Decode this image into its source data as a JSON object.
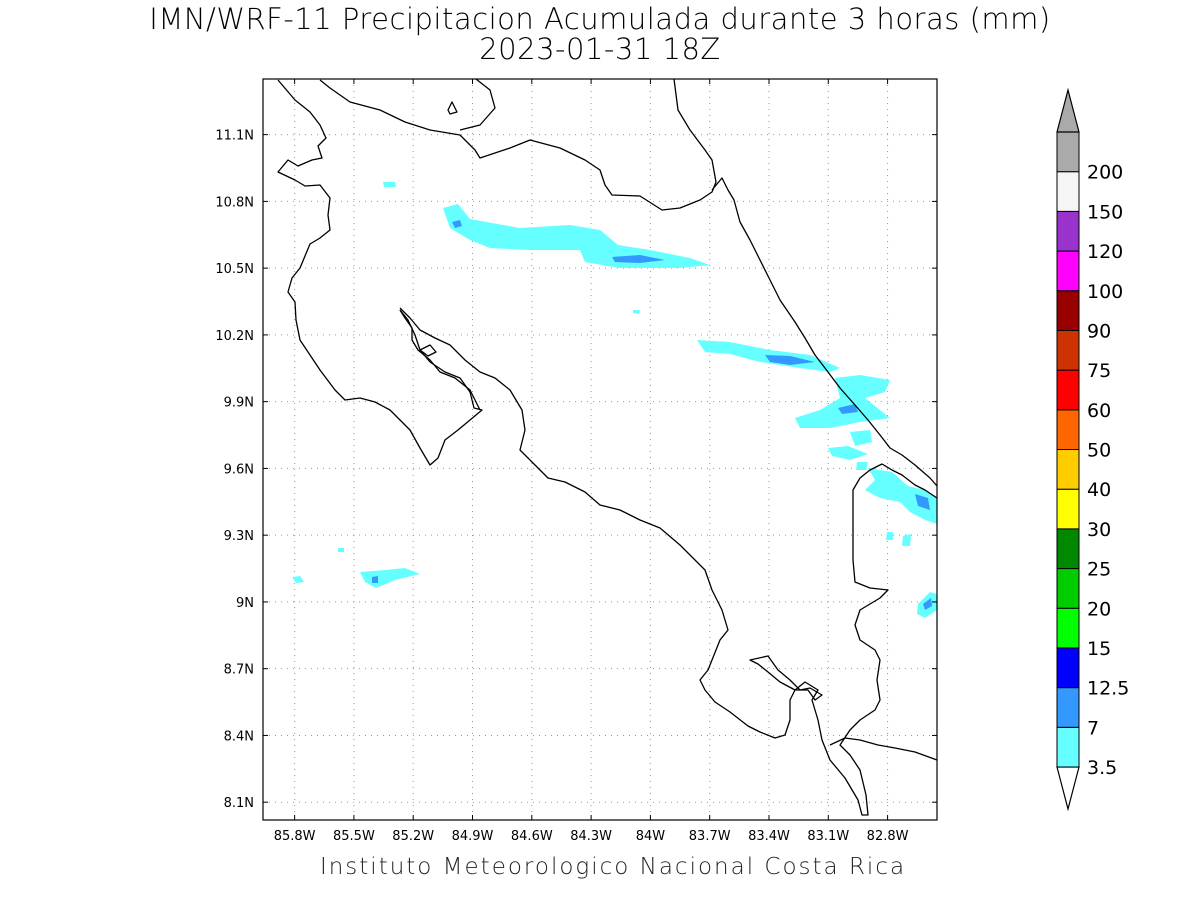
{
  "title": "IMN/WRF-11 Precipitacion Acumulada durante 3 horas (mm)",
  "subtitle": "2023-01-31 18Z",
  "footer": "Instituto Meteorologico Nacional Costa Rica",
  "map": {
    "lon_range": [
      -85.96,
      -82.55
    ],
    "lat_range": [
      8.02,
      11.35
    ],
    "x_ticks": [
      {
        "lon": -85.8,
        "label": "85.8W"
      },
      {
        "lon": -85.5,
        "label": "85.5W"
      },
      {
        "lon": -85.2,
        "label": "85.2W"
      },
      {
        "lon": -84.9,
        "label": "84.9W"
      },
      {
        "lon": -84.6,
        "label": "84.6W"
      },
      {
        "lon": -84.3,
        "label": "84.3W"
      },
      {
        "lon": -84.0,
        "label": "84W"
      },
      {
        "lon": -83.7,
        "label": "83.7W"
      },
      {
        "lon": -83.4,
        "label": "83.4W"
      },
      {
        "lon": -83.1,
        "label": "83.1W"
      },
      {
        "lon": -82.8,
        "label": "82.8W"
      }
    ],
    "y_ticks": [
      {
        "lat": 11.1,
        "label": "11.1N"
      },
      {
        "lat": 10.8,
        "label": "10.8N"
      },
      {
        "lat": 10.5,
        "label": "10.5N"
      },
      {
        "lat": 10.2,
        "label": "10.2N"
      },
      {
        "lat": 9.9,
        "label": "9.9N"
      },
      {
        "lat": 9.6,
        "label": "9.6N"
      },
      {
        "lat": 9.3,
        "label": "9.3N"
      },
      {
        "lat": 9.0,
        "label": "9N"
      },
      {
        "lat": 8.7,
        "label": "8.7N"
      },
      {
        "lat": 8.4,
        "label": "8.4N"
      },
      {
        "lat": 8.1,
        "label": "8.1N"
      }
    ],
    "grid": true,
    "precip_color_low": "#66ffff",
    "precip_color_mid": "#3399ff"
  },
  "colorbar": {
    "labels": [
      "3.5",
      "7",
      "12.5",
      "15",
      "20",
      "25",
      "30",
      "40",
      "50",
      "60",
      "75",
      "90",
      "100",
      "120",
      "150",
      "200"
    ],
    "colors": [
      "#66ffff",
      "#3399ff",
      "#0000ff",
      "#00ff00",
      "#00cc00",
      "#008800",
      "#ffff00",
      "#ffcc00",
      "#ff6600",
      "#ff0000",
      "#cc3300",
      "#990000",
      "#ff00ff",
      "#9933cc",
      "#f5f5f5",
      "#aaaaaa"
    ],
    "min_arrow_color": "#ffffff",
    "max_arrow_color": "#aaaaaa"
  }
}
